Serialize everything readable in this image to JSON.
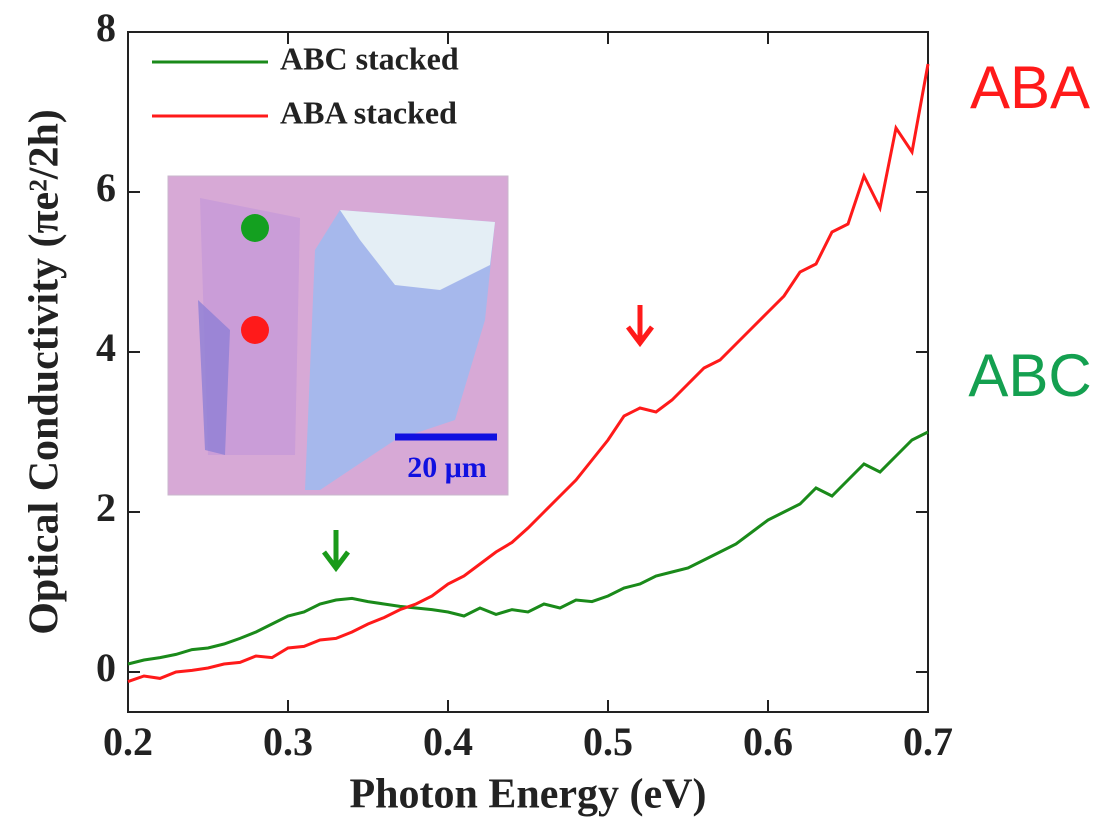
{
  "chart_data": {
    "type": "line",
    "x_label": "Photon Energy (eV)",
    "y_label": "Optical Conductivity (πe²/2h)",
    "xlim": [
      0.2,
      0.7
    ],
    "xticks": [
      0.2,
      0.3,
      0.4,
      0.5,
      0.6,
      0.7
    ],
    "ylim": [
      -0.5,
      8
    ],
    "yticks": [
      0,
      2,
      4,
      6,
      8
    ],
    "legend": "upper left",
    "inset_label": "20 μm",
    "annotations": [
      {
        "text": "ABA",
        "color": "#ff1a1a"
      },
      {
        "text": "ABC",
        "color": "#14a050"
      }
    ],
    "x": [
      0.2,
      0.21,
      0.22,
      0.23,
      0.24,
      0.25,
      0.26,
      0.27,
      0.28,
      0.29,
      0.3,
      0.31,
      0.32,
      0.33,
      0.34,
      0.35,
      0.36,
      0.37,
      0.38,
      0.39,
      0.4,
      0.41,
      0.42,
      0.43,
      0.44,
      0.45,
      0.46,
      0.47,
      0.48,
      0.49,
      0.5,
      0.51,
      0.52,
      0.53,
      0.54,
      0.55,
      0.56,
      0.57,
      0.58,
      0.59,
      0.6,
      0.61,
      0.62,
      0.63,
      0.64,
      0.65,
      0.66,
      0.67,
      0.68,
      0.69,
      0.7
    ],
    "series": [
      {
        "name": "ABC stacked",
        "color": "#1a8a1a",
        "values": [
          0.1,
          0.15,
          0.18,
          0.22,
          0.28,
          0.3,
          0.35,
          0.42,
          0.5,
          0.6,
          0.7,
          0.75,
          0.85,
          0.9,
          0.92,
          0.88,
          0.85,
          0.82,
          0.8,
          0.78,
          0.75,
          0.7,
          0.8,
          0.72,
          0.78,
          0.75,
          0.85,
          0.8,
          0.9,
          0.88,
          0.95,
          1.05,
          1.1,
          1.2,
          1.25,
          1.3,
          1.4,
          1.5,
          1.6,
          1.75,
          1.9,
          2.0,
          2.1,
          2.3,
          2.2,
          2.4,
          2.6,
          2.5,
          2.7,
          2.9,
          3.0
        ]
      },
      {
        "name": "ABA stacked",
        "color": "#ff1a1a",
        "values": [
          -0.12,
          -0.05,
          -0.08,
          0.0,
          0.02,
          0.05,
          0.1,
          0.12,
          0.2,
          0.18,
          0.3,
          0.32,
          0.4,
          0.42,
          0.5,
          0.6,
          0.68,
          0.78,
          0.85,
          0.95,
          1.1,
          1.2,
          1.35,
          1.5,
          1.62,
          1.8,
          2.0,
          2.2,
          2.4,
          2.65,
          2.9,
          3.2,
          3.3,
          3.25,
          3.4,
          3.6,
          3.8,
          3.9,
          4.1,
          4.3,
          4.5,
          4.7,
          5.0,
          5.1,
          5.5,
          5.6,
          6.2,
          5.8,
          6.8,
          6.5,
          7.6
        ]
      }
    ]
  }
}
